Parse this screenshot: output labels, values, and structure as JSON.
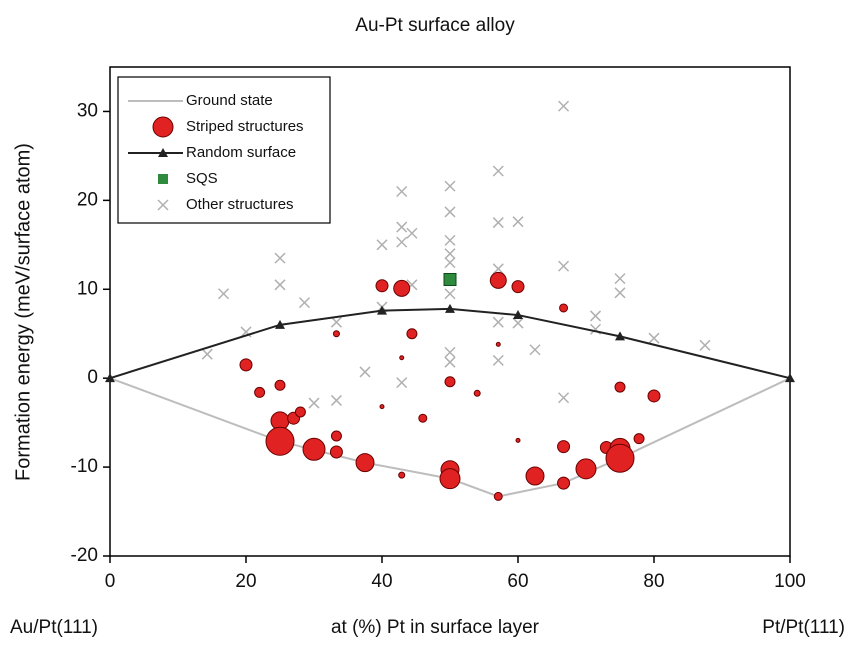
{
  "chart_data": {
    "type": "scatter",
    "title": "Au-Pt surface alloy",
    "x_label": "at (%) Pt in surface layer",
    "y_label": "Formation energy (meV/surface atom)",
    "annotations": [
      "Au/Pt(111)",
      "Pt/Pt(111)"
    ],
    "xlim": [
      0,
      100
    ],
    "xticks": [
      0,
      20,
      40,
      60,
      80,
      100
    ],
    "ylim": [
      -20,
      35
    ],
    "yticks": [
      -20,
      -10,
      0,
      10,
      20,
      30
    ],
    "legend": "upper left",
    "series": [
      {
        "name": "Ground state",
        "marker": "line",
        "color": "#bdbdbd",
        "x": [
          0,
          25,
          37.5,
          50,
          57.1,
          66.7,
          75,
          100
        ],
        "values": [
          0,
          -7.1,
          -9.5,
          -11.3,
          -13.3,
          -11.8,
          -9,
          0
        ]
      },
      {
        "name": "Striped structures",
        "marker": "circle",
        "color": "#e02222",
        "x": [
          20,
          22,
          25,
          25,
          25,
          27,
          28,
          30,
          33.3,
          33.3,
          33.3,
          37.5,
          40,
          40,
          42.9,
          42.9,
          42.9,
          44.4,
          46,
          50,
          50,
          50,
          54,
          57.1,
          57.1,
          57.1,
          60,
          60,
          62.5,
          66.7,
          66.7,
          66.7,
          70,
          73,
          75,
          75,
          75,
          77.8,
          80
        ],
        "values": [
          1.5,
          -1.6,
          -0.8,
          -4.8,
          -7.1,
          -4.5,
          -3.8,
          -8,
          -6.5,
          -8.3,
          5,
          -9.5,
          10.4,
          -3.2,
          10.1,
          2.3,
          -10.9,
          5,
          -4.5,
          -0.4,
          -10.3,
          -11.3,
          -1.7,
          11,
          3.8,
          -13.3,
          10.3,
          -7,
          -11,
          -11.8,
          -7.7,
          7.9,
          -10.2,
          -7.8,
          -1,
          -7.9,
          -9,
          -6.8,
          -2
        ],
        "sizes": [
          6,
          5,
          5,
          9,
          14,
          6,
          5,
          11,
          5,
          6,
          3,
          9,
          6,
          2,
          8,
          2,
          3,
          5,
          4,
          5,
          9,
          10,
          3,
          8,
          2,
          4,
          6,
          2,
          9,
          6,
          6,
          4,
          10,
          6,
          5,
          10,
          14,
          5,
          6
        ]
      },
      {
        "name": "Random surface",
        "marker": "line-triangle",
        "color": "#222222",
        "x": [
          0,
          25,
          40,
          50,
          60,
          75,
          100
        ],
        "values": [
          0,
          6,
          7.6,
          7.8,
          7.1,
          4.7,
          0
        ]
      },
      {
        "name": "SQS",
        "marker": "square",
        "color": "#2e8b3e",
        "x": [
          50
        ],
        "values": [
          11.1
        ]
      },
      {
        "name": "Other structures",
        "marker": "x",
        "color": "#b0b0b0",
        "x": [
          14.3,
          16.7,
          20,
          25,
          25,
          28.6,
          30,
          33.3,
          33.3,
          37.5,
          40,
          40,
          42.9,
          42.9,
          42.9,
          42.9,
          44.4,
          44.4,
          50,
          50,
          50,
          50,
          50,
          50,
          50,
          50,
          57.1,
          57.1,
          57.1,
          57.1,
          57.1,
          60,
          60,
          62.5,
          66.7,
          66.7,
          66.7,
          71.4,
          71.4,
          75,
          75,
          80,
          87.5
        ],
        "values": [
          2.7,
          9.5,
          5.2,
          13.5,
          10.5,
          8.5,
          -2.8,
          6.3,
          -2.5,
          0.7,
          15,
          8,
          21,
          17,
          15.3,
          -0.5,
          16.3,
          10.5,
          21.6,
          18.7,
          15.5,
          14,
          13,
          9.5,
          2.9,
          1.8,
          23.3,
          17.5,
          12.3,
          6.3,
          2,
          17.6,
          6.2,
          3.2,
          30.6,
          12.6,
          -2.2,
          7,
          5.5,
          11.2,
          9.6,
          4.5,
          3.7
        ]
      }
    ]
  }
}
